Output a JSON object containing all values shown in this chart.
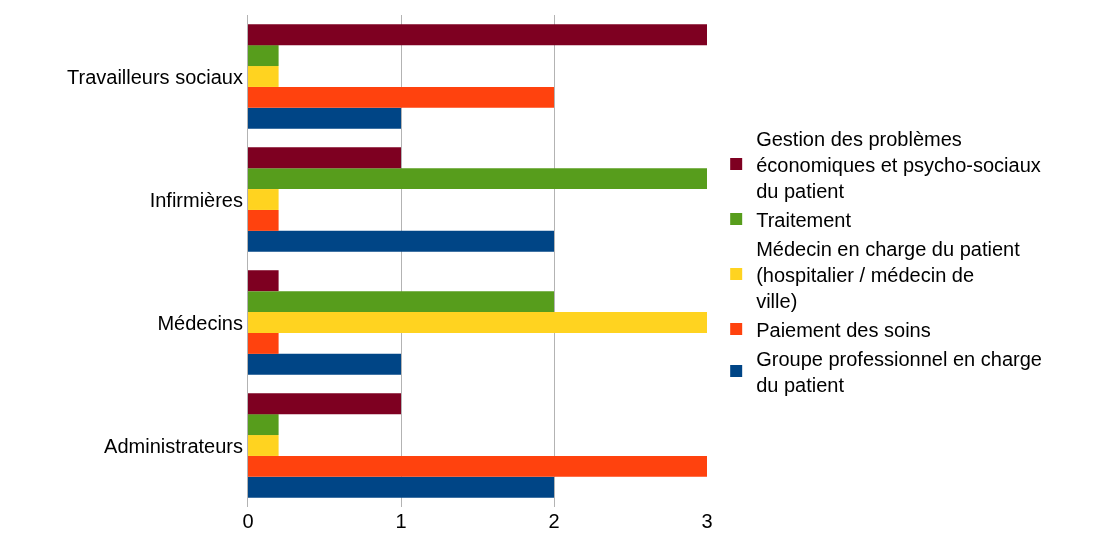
{
  "chart_data": {
    "type": "bar",
    "orientation": "horizontal",
    "categories": [
      "Travailleurs sociaux",
      "Infirmières",
      "Médecins",
      "Administrateurs"
    ],
    "series": [
      {
        "name": "Groupe professionnel en charge du patient",
        "color": "#004586",
        "values": [
          1,
          2,
          1,
          2
        ]
      },
      {
        "name": "Paiement des soins",
        "color": "#ff420e",
        "values": [
          2,
          0.2,
          0.2,
          3
        ]
      },
      {
        "name": "Médecin en charge du patient (hospitalier / médecin de ville)",
        "color": "#ffd320",
        "values": [
          0.2,
          0.2,
          3,
          0.2
        ]
      },
      {
        "name": "Traitement",
        "color": "#579d1c",
        "values": [
          0.2,
          3,
          2,
          0.2
        ]
      },
      {
        "name": "Gestion des problèmes économiques et psycho-sociaux du patient",
        "color": "#7e0021",
        "values": [
          3,
          1,
          0.2,
          1
        ]
      }
    ],
    "xlim": [
      0,
      3
    ],
    "xticks": [
      0,
      1,
      2,
      3
    ],
    "grid": "x",
    "legend": "right"
  }
}
